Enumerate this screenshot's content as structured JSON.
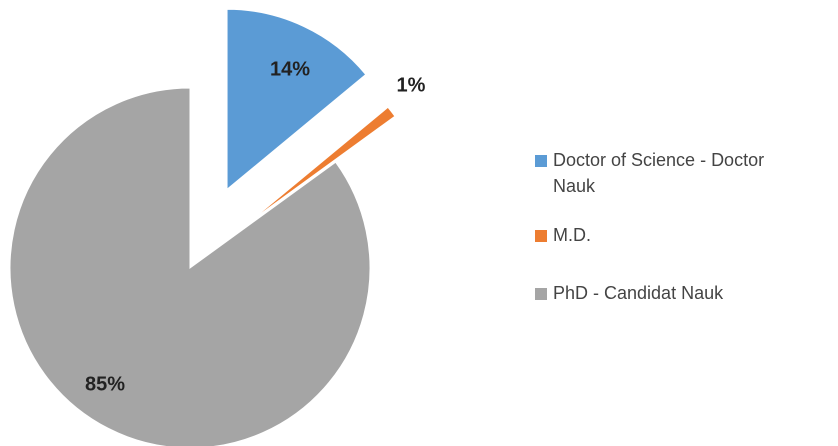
{
  "chart_data": {
    "type": "pie",
    "categories": [
      "Doctor of Science - Doctor Nauk",
      "M.D.",
      "PhD - Candidat Nauk"
    ],
    "values": [
      14,
      1,
      85
    ],
    "value_labels": [
      "14%",
      "1%",
      "85%"
    ],
    "colors": [
      "#5b9bd5",
      "#ed7d31",
      "#a5a5a5"
    ],
    "legend": "right"
  }
}
